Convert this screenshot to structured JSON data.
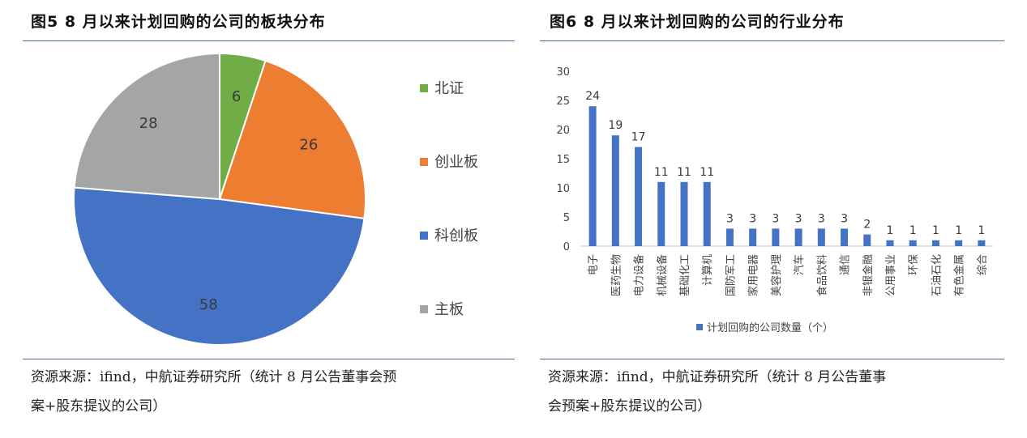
{
  "left": {
    "title": "图5  8 月以来计划回购的公司的板块分布",
    "source_lines": [
      "资源来源：ifind，中航证券研究所（统计 8 月公告董事会预",
      "案+股东提议的公司）"
    ]
  },
  "right": {
    "title": "图6  8 月以来计划回购的公司的行业分布",
    "source_lines": [
      "资源来源：ifind，中航证券研究所（统计 8 月公告董事",
      "会预案+股东提议的公司）"
    ]
  },
  "chart_data": [
    {
      "type": "pie",
      "title": "",
      "categories": [
        "北证",
        "创业板",
        "科创板",
        "主板"
      ],
      "values": [
        6,
        26,
        58,
        28
      ],
      "colors": [
        "#70ad47",
        "#ed7d31",
        "#4472c4",
        "#a5a5a5"
      ],
      "legend": "right"
    },
    {
      "type": "bar",
      "title": "",
      "categories": [
        "电子",
        "医药生物",
        "电力设备",
        "机械设备",
        "基础化工",
        "计算机",
        "国防军工",
        "家用电器",
        "美容护理",
        "汽车",
        "食品饮料",
        "通信",
        "非银金融",
        "公用事业",
        "环保",
        "石油石化",
        "有色金属",
        "综合"
      ],
      "series": [
        {
          "name": "计划回购的公司数量（个）",
          "values": [
            24,
            19,
            17,
            11,
            11,
            11,
            3,
            3,
            3,
            3,
            3,
            3,
            2,
            1,
            1,
            1,
            1,
            1
          ]
        }
      ],
      "ylim": [
        0,
        30
      ],
      "yticks": [
        0,
        5,
        10,
        15,
        20,
        25,
        30
      ],
      "color": "#4472c4",
      "grid": false,
      "legend": "bottom"
    }
  ]
}
